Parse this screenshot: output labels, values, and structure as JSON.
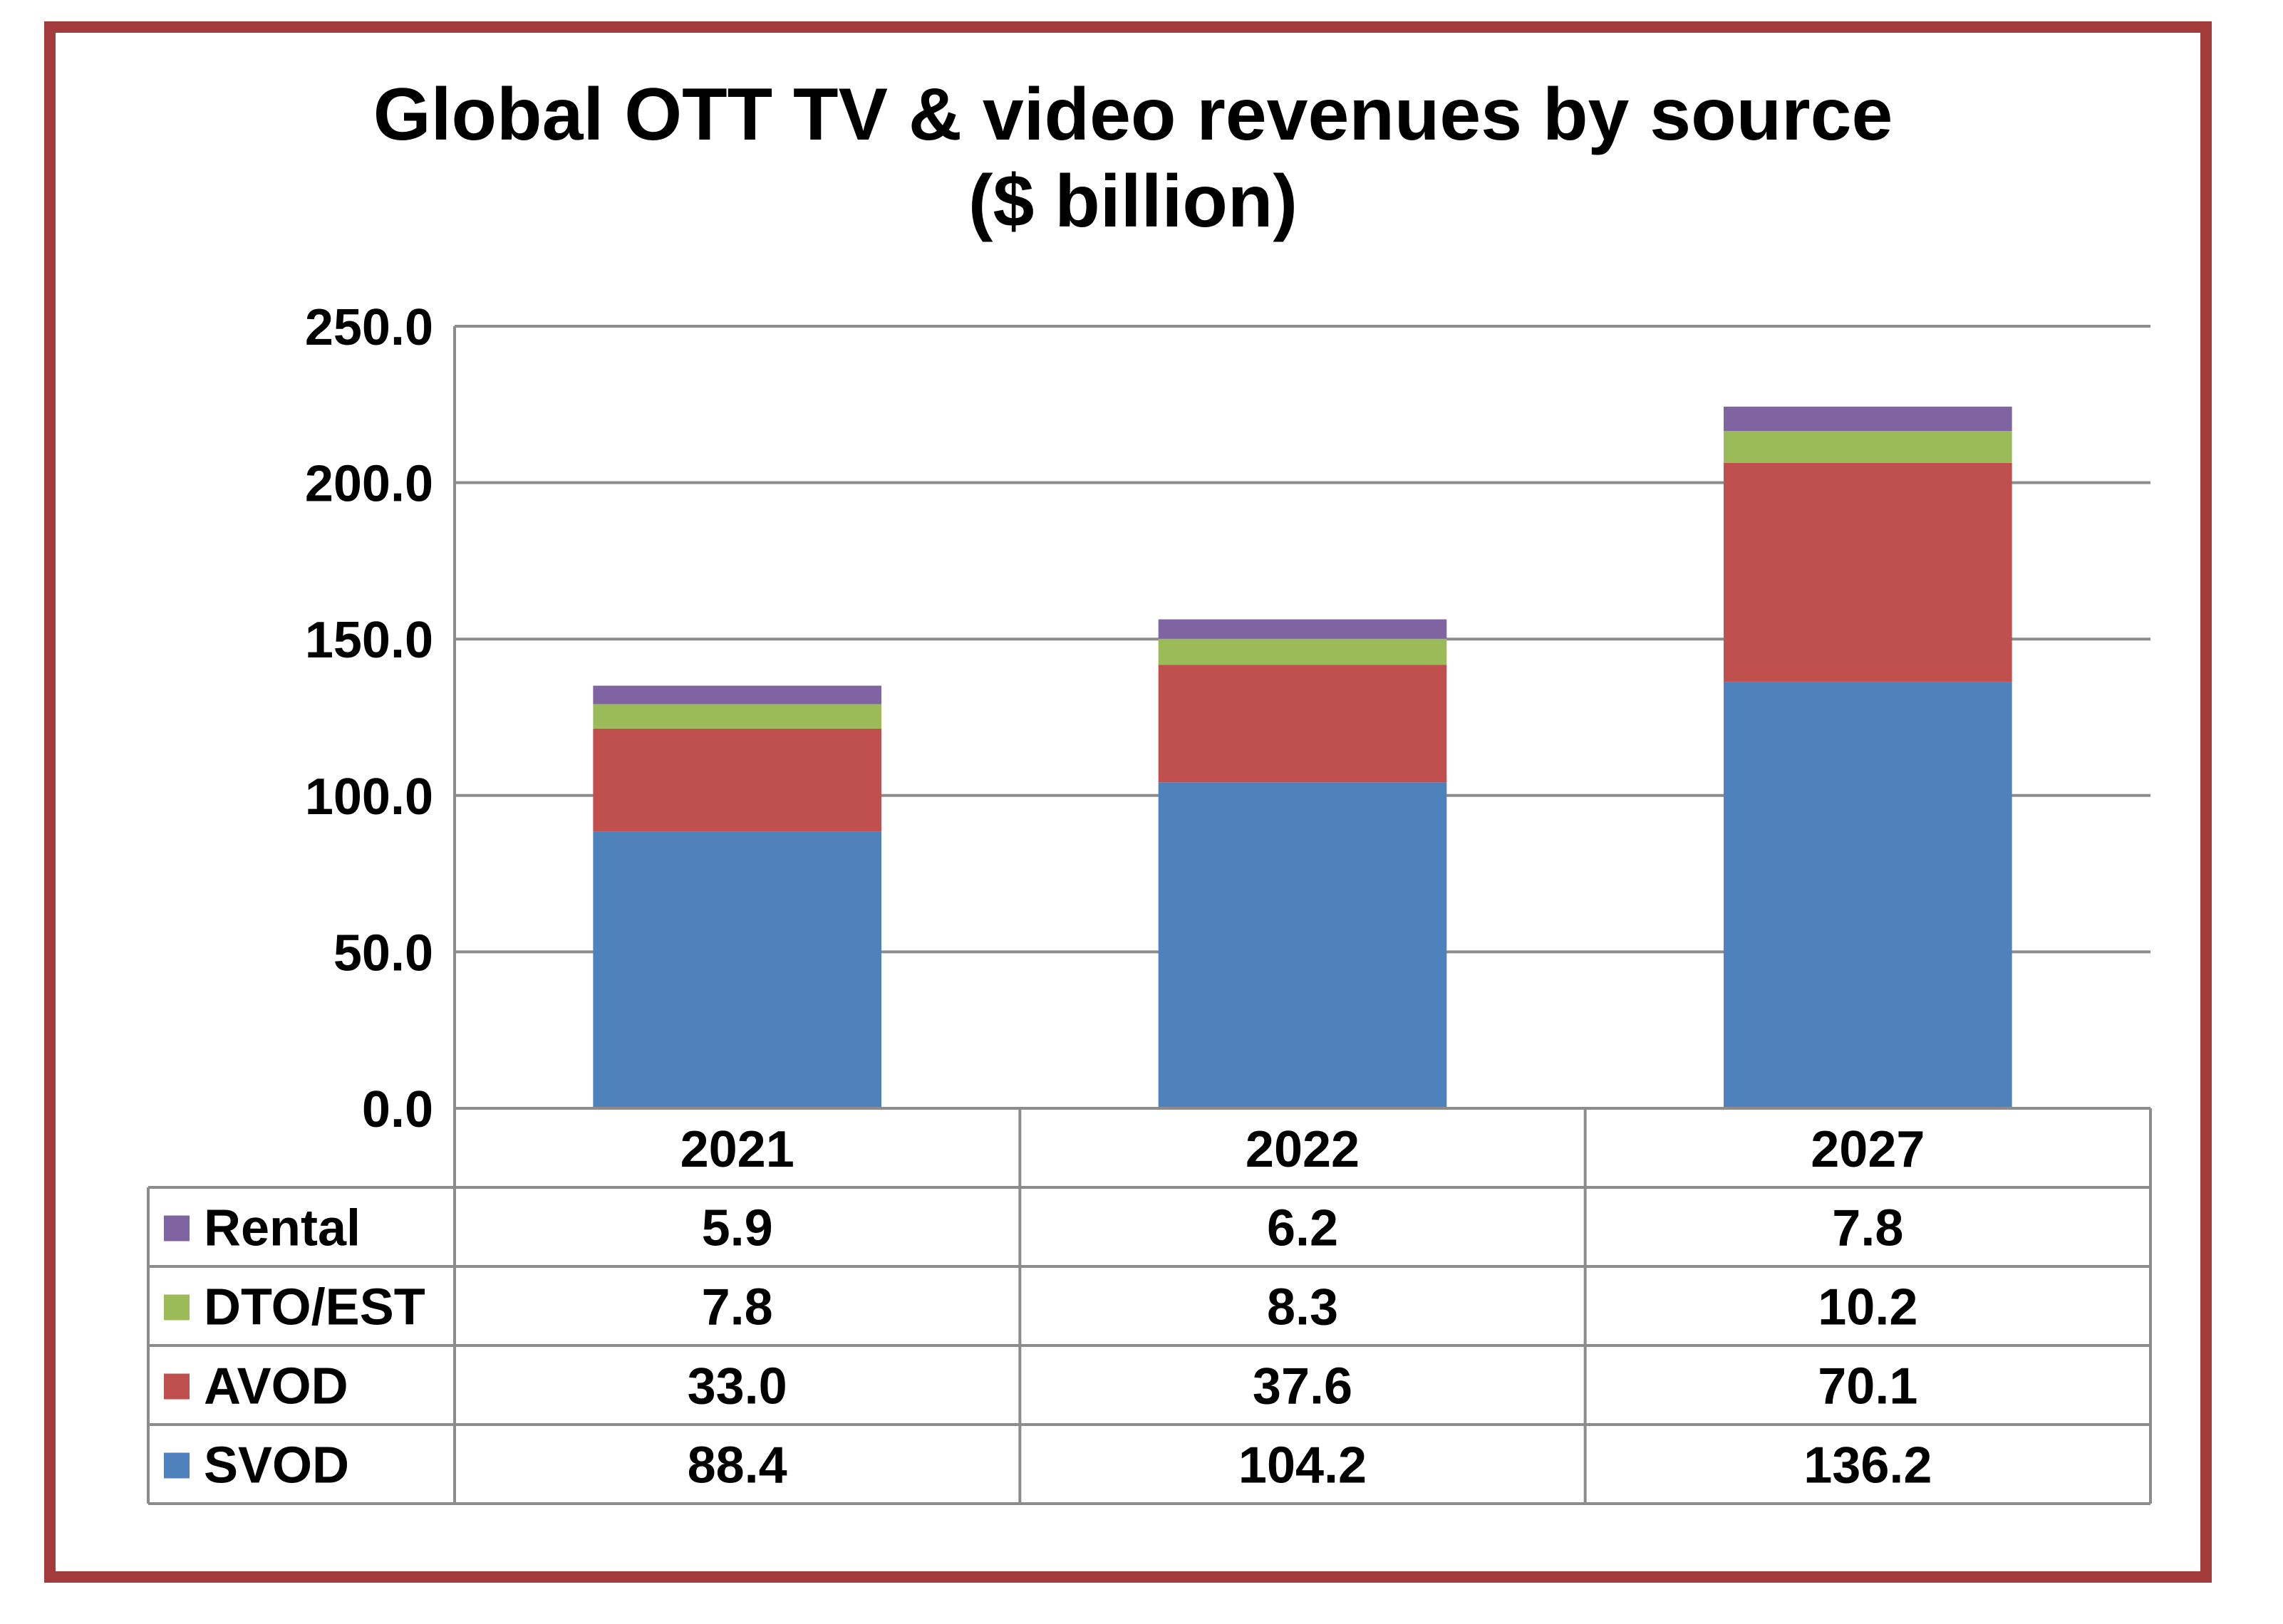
{
  "chart_data": {
    "type": "bar",
    "stacked": true,
    "title": "Global OTT TV & video revenues by source",
    "subtitle": "($ billion)",
    "xlabel": "",
    "ylabel": "",
    "ylim": [
      0,
      250
    ],
    "y_ticks": [
      "0.0",
      "50.0",
      "100.0",
      "150.0",
      "200.0",
      "250.0"
    ],
    "grid": true,
    "categories": [
      "2021",
      "2022",
      "2027"
    ],
    "series": [
      {
        "name": "SVOD",
        "color": "#4F81BD",
        "values": [
          88.4,
          104.2,
          136.2
        ],
        "labels": [
          "88.4",
          "104.2",
          "136.2"
        ]
      },
      {
        "name": "AVOD",
        "color": "#C0504D",
        "values": [
          33.0,
          37.6,
          70.1
        ],
        "labels": [
          "33.0",
          "37.6",
          "70.1"
        ]
      },
      {
        "name": "DTO/EST",
        "color": "#9BBB59",
        "values": [
          7.8,
          8.3,
          10.2
        ],
        "labels": [
          "7.8",
          "8.3",
          "10.2"
        ]
      },
      {
        "name": "Rental",
        "color": "#8064A2",
        "values": [
          5.9,
          6.2,
          7.8
        ],
        "labels": [
          "5.9",
          "6.2",
          "7.8"
        ]
      }
    ],
    "table_row_order": [
      "Rental",
      "DTO/EST",
      "AVOD",
      "SVOD"
    ],
    "frame_color": "#A33B3B"
  }
}
